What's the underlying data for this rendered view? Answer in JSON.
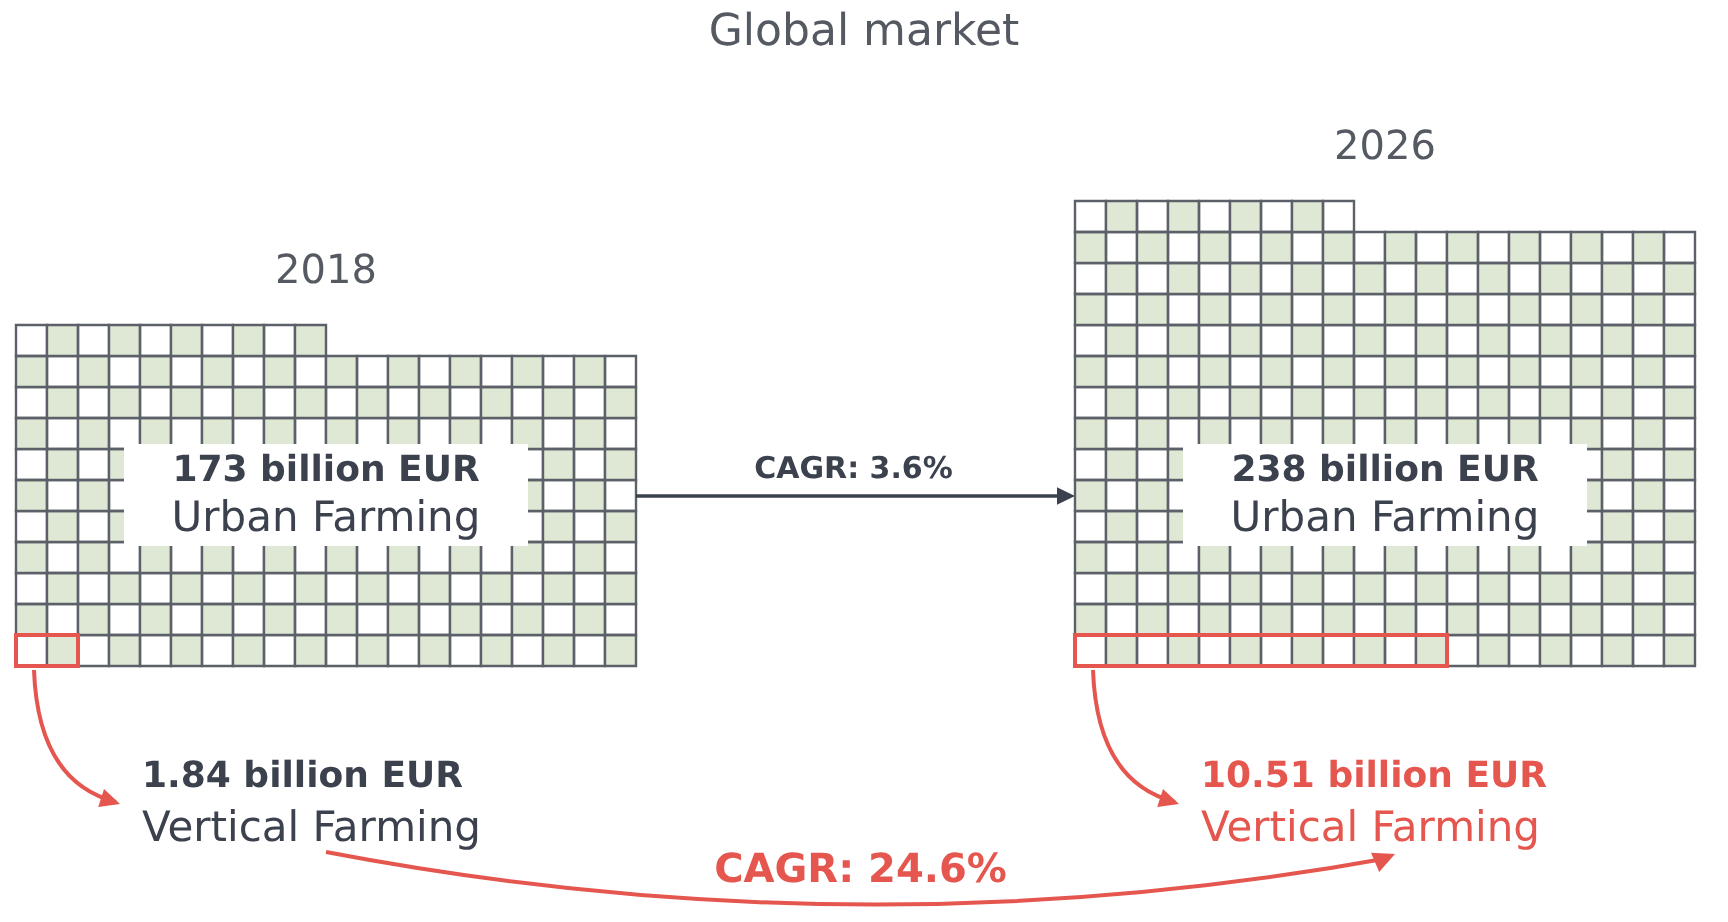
{
  "chart_data": {
    "type": "other",
    "title": "Global market",
    "categories": [
      "2018",
      "2026"
    ],
    "series": [
      {
        "name": "Urban Farming",
        "color": "#dfe8d4",
        "values": [
          173,
          238
        ],
        "value_labels": [
          "173 billion EUR",
          "238 billion EUR"
        ]
      },
      {
        "name": "Vertical Farming",
        "color": "#e4564e",
        "values": [
          1.84,
          10.51
        ],
        "value_labels": [
          "1.84 billion EUR",
          "10.51 billion EUR"
        ]
      }
    ],
    "annotations": [
      "CAGR: 3.6%",
      "CAGR: 24.6%"
    ]
  }
}
